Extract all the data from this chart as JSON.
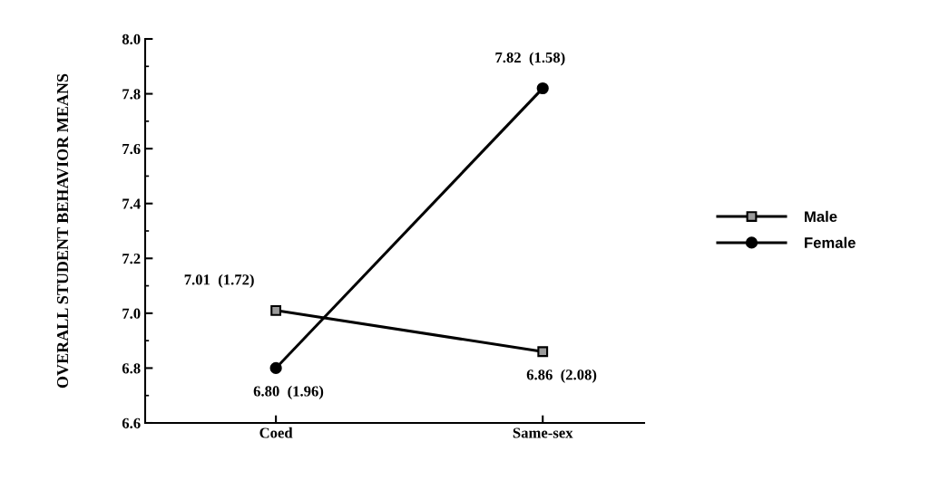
{
  "chart_data": {
    "type": "line",
    "ylabel": "OVERALL STUDENT BEHAVIOR MEANS",
    "categories": [
      "Coed",
      "Same-sex"
    ],
    "series": [
      {
        "name": "Male",
        "color": "#000000",
        "marker": "square",
        "values": [
          7.01,
          6.86
        ],
        "value_labels": [
          "7.01  (1.72)",
          "6.86  (2.08)"
        ]
      },
      {
        "name": "Female",
        "color": "#000000",
        "marker": "circle",
        "values": [
          6.8,
          7.82
        ],
        "value_labels": [
          "6.80  (1.96)",
          "7.82  (1.58)"
        ]
      }
    ],
    "ylim": [
      6.6,
      8.0
    ],
    "yticks": [
      {
        "value": 6.6,
        "label": "6.6"
      },
      {
        "value": 6.8,
        "label": "6.8"
      },
      {
        "value": 7.0,
        "label": "7.0"
      },
      {
        "value": 7.2,
        "label": "7.2"
      },
      {
        "value": 7.4,
        "label": "7.4"
      },
      {
        "value": 7.6,
        "label": "7.6"
      },
      {
        "value": 7.8,
        "label": "7.8"
      },
      {
        "value": 8.0,
        "label": "8.0"
      }
    ],
    "grid": false,
    "legend": "right",
    "line_style": "solid"
  }
}
